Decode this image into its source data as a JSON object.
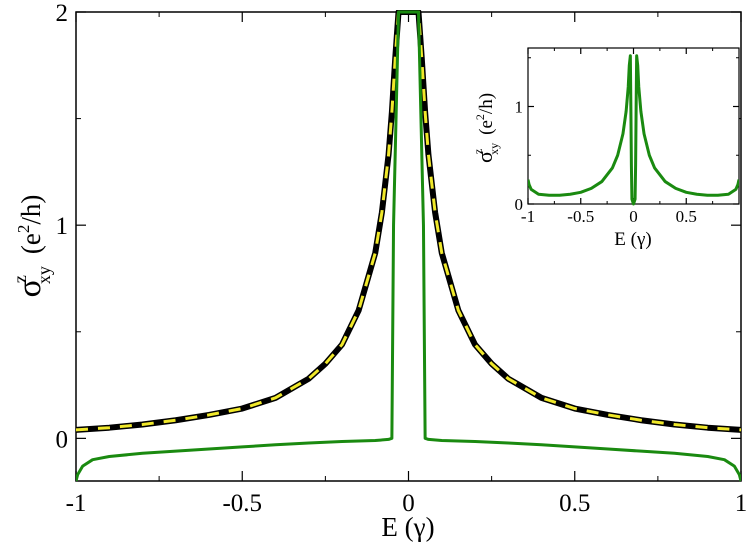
{
  "chart_data": [
    {
      "type": "line",
      "name": "main",
      "xlabel": "E (γ)",
      "ylabel": {
        "main": "σ",
        "sup": "z",
        "sub": "xy",
        "unit": "(e",
        "unit_sup": "2",
        "unit_end": "/h)"
      },
      "xlim": [
        -1,
        1
      ],
      "ylim": [
        -0.2,
        2
      ],
      "xticks": [
        -1,
        -0.5,
        0,
        0.5,
        1
      ],
      "xtick_labels": [
        "-1",
        "-0.5",
        "0",
        "0.5",
        "1"
      ],
      "yticks": [
        0,
        1,
        2
      ],
      "ytick_labels": [
        "0",
        "1",
        "2"
      ],
      "series": [
        {
          "name": "black dashed",
          "color": "#000000",
          "x": [
            -1,
            -0.9,
            -0.8,
            -0.7,
            -0.6,
            -0.5,
            -0.4,
            -0.3,
            -0.25,
            -0.2,
            -0.15,
            -0.1,
            -0.08,
            -0.06,
            -0.05,
            -0.04,
            -0.03,
            -0.02,
            -0.01,
            0,
            0.01,
            0.02,
            0.03,
            0.04,
            0.05,
            0.06,
            0.08,
            0.1,
            0.15,
            0.2,
            0.25,
            0.3,
            0.4,
            0.5,
            0.6,
            0.7,
            0.8,
            0.9,
            1
          ],
          "y": [
            0.04,
            0.05,
            0.065,
            0.085,
            0.11,
            0.14,
            0.19,
            0.28,
            0.35,
            0.44,
            0.6,
            0.87,
            1.06,
            1.33,
            1.53,
            1.78,
            2,
            2,
            2,
            2,
            2,
            2,
            2,
            1.78,
            1.53,
            1.33,
            1.06,
            0.87,
            0.6,
            0.44,
            0.35,
            0.28,
            0.19,
            0.14,
            0.11,
            0.085,
            0.065,
            0.05,
            0.04
          ]
        },
        {
          "name": "yellow dashed",
          "color": "#f0e82a",
          "x": [
            -1,
            -0.9,
            -0.8,
            -0.7,
            -0.6,
            -0.5,
            -0.4,
            -0.3,
            -0.25,
            -0.2,
            -0.15,
            -0.1,
            -0.08,
            -0.06,
            -0.05,
            -0.04,
            -0.03,
            -0.02,
            -0.01,
            0,
            0.01,
            0.02,
            0.03,
            0.04,
            0.05,
            0.06,
            0.08,
            0.1,
            0.15,
            0.2,
            0.25,
            0.3,
            0.4,
            0.5,
            0.6,
            0.7,
            0.8,
            0.9,
            1
          ],
          "y": [
            0.04,
            0.05,
            0.065,
            0.085,
            0.11,
            0.14,
            0.19,
            0.28,
            0.35,
            0.44,
            0.6,
            0.87,
            1.06,
            1.33,
            1.53,
            1.78,
            2,
            2,
            2,
            2,
            2,
            2,
            2,
            1.78,
            1.53,
            1.33,
            1.06,
            0.87,
            0.6,
            0.44,
            0.35,
            0.28,
            0.19,
            0.14,
            0.11,
            0.085,
            0.065,
            0.05,
            0.04
          ]
        },
        {
          "name": "green",
          "color": "#1a8a10",
          "x": [
            -1,
            -0.995,
            -0.98,
            -0.95,
            -0.9,
            -0.8,
            -0.7,
            -0.6,
            -0.5,
            -0.4,
            -0.3,
            -0.2,
            -0.1,
            -0.06,
            -0.05,
            -0.045,
            -0.03,
            -0.02,
            -0.01,
            0,
            0.01,
            0.02,
            0.03,
            0.045,
            0.05,
            0.06,
            0.1,
            0.2,
            0.3,
            0.4,
            0.5,
            0.6,
            0.7,
            0.8,
            0.9,
            0.95,
            0.98,
            0.995,
            1
          ],
          "y": [
            -0.2,
            -0.17,
            -0.13,
            -0.1,
            -0.085,
            -0.07,
            -0.06,
            -0.05,
            -0.04,
            -0.03,
            -0.022,
            -0.015,
            -0.01,
            -0.005,
            0,
            1.0,
            2,
            2,
            2,
            2,
            2,
            2,
            2,
            1.0,
            0,
            -0.005,
            -0.01,
            -0.015,
            -0.022,
            -0.03,
            -0.04,
            -0.05,
            -0.06,
            -0.07,
            -0.085,
            -0.1,
            -0.13,
            -0.17,
            -0.2
          ]
        }
      ]
    },
    {
      "type": "line",
      "name": "inset",
      "xlabel": "E (γ)",
      "ylabel": {
        "main": "σ",
        "sup": "z",
        "sub": "xy",
        "unit": "(e",
        "unit_sup": "2",
        "unit_end": "/h)"
      },
      "xlim": [
        -1,
        1
      ],
      "ylim": [
        0,
        1.6
      ],
      "xticks": [
        -1,
        -0.5,
        0,
        0.5
      ],
      "xtick_labels": [
        "-1",
        "-0.5",
        "0",
        "0.5"
      ],
      "yticks": [
        0,
        1
      ],
      "ytick_labels": [
        "0",
        "1"
      ],
      "series": [
        {
          "name": "green",
          "color": "#1a8a10",
          "x": [
            -1,
            -0.99,
            -0.97,
            -0.9,
            -0.8,
            -0.7,
            -0.6,
            -0.5,
            -0.4,
            -0.3,
            -0.2,
            -0.15,
            -0.1,
            -0.07,
            -0.05,
            -0.04,
            -0.03,
            -0.025,
            -0.02,
            -0.015,
            0,
            0.015,
            0.02,
            0.025,
            0.03,
            0.04,
            0.05,
            0.07,
            0.1,
            0.15,
            0.2,
            0.3,
            0.4,
            0.5,
            0.6,
            0.7,
            0.8,
            0.9,
            0.97,
            0.99,
            1
          ],
          "y": [
            0.25,
            0.2,
            0.15,
            0.1,
            0.09,
            0.09,
            0.1,
            0.12,
            0.16,
            0.23,
            0.37,
            0.5,
            0.72,
            0.95,
            1.2,
            1.42,
            1.52,
            1.0,
            0.4,
            0.05,
            0,
            0.05,
            0.4,
            1.0,
            1.52,
            1.42,
            1.2,
            0.95,
            0.72,
            0.5,
            0.37,
            0.23,
            0.16,
            0.12,
            0.1,
            0.09,
            0.09,
            0.1,
            0.15,
            0.2,
            0.25
          ]
        }
      ]
    }
  ]
}
